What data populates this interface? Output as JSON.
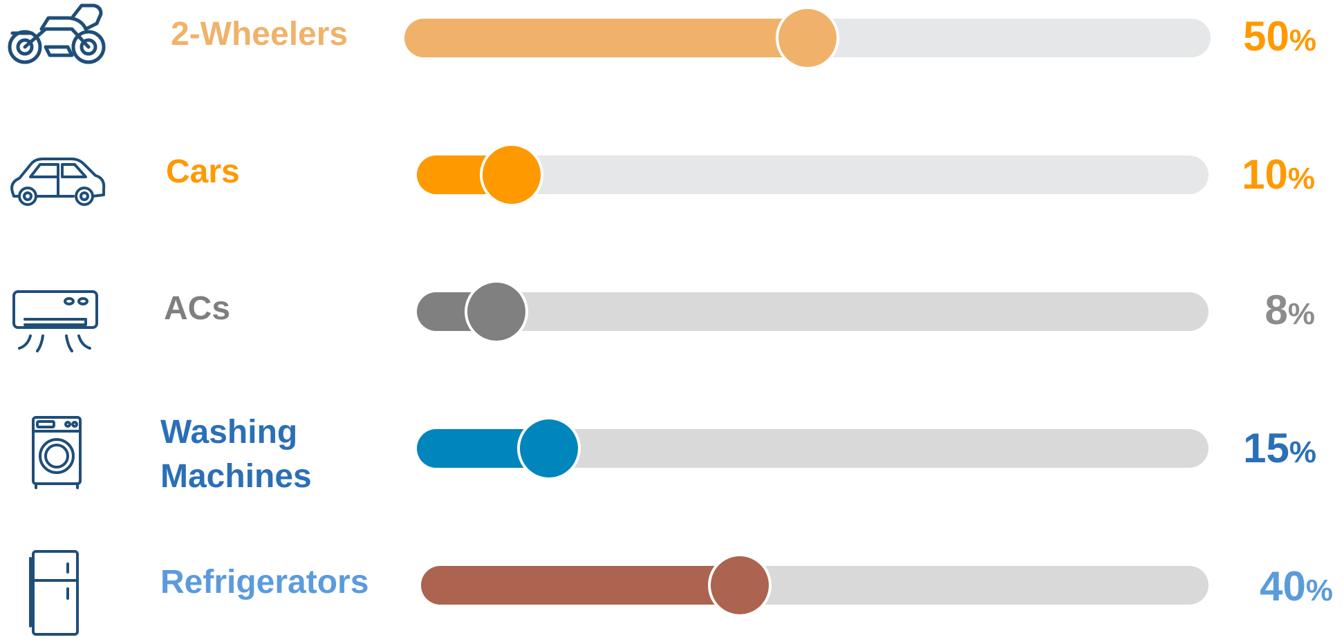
{
  "chart_data": {
    "type": "bar",
    "categories": [
      "2-Wheelers",
      "Cars",
      "ACs",
      "Washing Machines",
      "Refrigerators"
    ],
    "values": [
      50,
      10,
      8,
      15,
      40
    ],
    "unit": "%",
    "xlim": [
      0,
      100
    ],
    "colors": [
      "#f0b26a",
      "#ff9900",
      "#808080",
      "#0085bd",
      "#ac6350"
    ],
    "label_colors": [
      "#f0b26a",
      "#ff9900",
      "#7f7f7f",
      "#2b6fb6",
      "#5b9bdc"
    ],
    "percent_colors": [
      "#ff9900",
      "#ff9900",
      "#8c8c8c",
      "#2b6fb6",
      "#5b9bdc"
    ],
    "track_colors": [
      "#e6e7e8",
      "#e6e7e8",
      "#d9d9d9",
      "#d9d9d9",
      "#d9d9d9"
    ],
    "icons": [
      "motorcycle-icon",
      "car-icon",
      "air-conditioner-icon",
      "washing-machine-icon",
      "refrigerator-icon"
    ]
  },
  "rows": [
    {
      "label": "2-Wheelers",
      "value_text": "50",
      "unit": "%"
    },
    {
      "label": "Cars",
      "value_text": "10",
      "unit": "%"
    },
    {
      "label": "ACs",
      "value_text": "8",
      "unit": "%"
    },
    {
      "label_line1": "Washing",
      "label_line2": "Machines",
      "value_text": "15",
      "unit": "%"
    },
    {
      "label": "Refrigerators",
      "value_text": "40",
      "unit": "%"
    }
  ]
}
